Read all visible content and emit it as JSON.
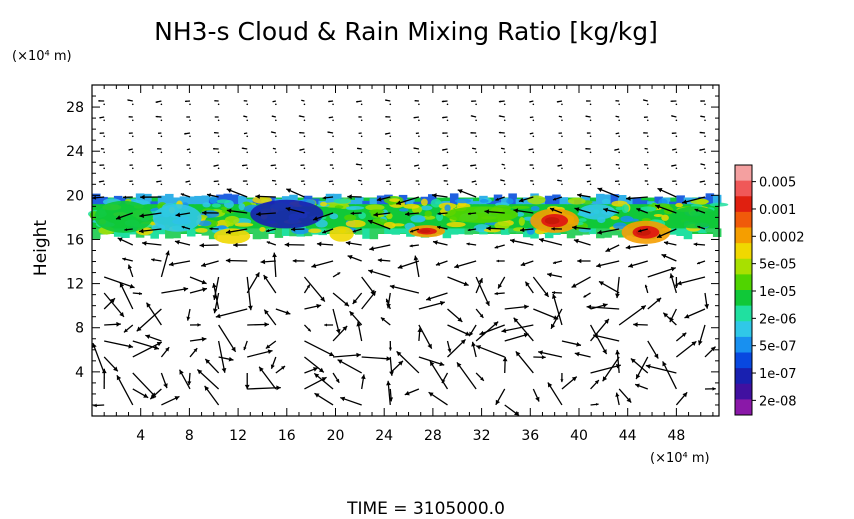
{
  "chart_data": {
    "type": "heatmap",
    "title": "NH3-s Cloud & Rain Mixing Ratio [kg/kg]",
    "ylabel": "Height",
    "y_unit_label": "(×10⁴ m)",
    "x_unit_label": "(×10⁴ m)",
    "xlim": [
      0,
      51.5
    ],
    "ylim": [
      0,
      30
    ],
    "x_ticks": [
      "4",
      "8",
      "12",
      "16",
      "20",
      "24",
      "28",
      "32",
      "36",
      "40",
      "44",
      "48"
    ],
    "y_ticks": [
      "4",
      "8",
      "12",
      "16",
      "20",
      "24",
      "28"
    ],
    "footer": "TIME = 3105000.0",
    "colorbar": {
      "labels": [
        "0.005",
        "0.001",
        "0.0002",
        "5e-05",
        "1e-05",
        "2e-06",
        "5e-07",
        "1e-07",
        "2e-08"
      ],
      "colors": [
        "#f4a0a0",
        "#f05858",
        "#e02010",
        "#f05a0a",
        "#f59e00",
        "#f0d800",
        "#a8e000",
        "#50d400",
        "#10c838",
        "#20e0a0",
        "#30c8e8",
        "#1890f0",
        "#0848e0",
        "#1820b0",
        "#4010a0",
        "#8a18a8"
      ]
    },
    "cloud_layer": {
      "y_bottom": 16.5,
      "y_top": 19.8,
      "background_level": "1e-05",
      "regions": [
        {
          "x": [
            0.2,
            5.0
          ],
          "y": [
            16.6,
            19.5
          ],
          "level": "1e-05"
        },
        {
          "x": [
            5.0,
            9.0
          ],
          "y": [
            16.7,
            19.2
          ],
          "level": "2e-06"
        },
        {
          "x": [
            10.0,
            13.0
          ],
          "y": [
            15.6,
            17.0
          ],
          "level": "0.0002"
        },
        {
          "x": [
            13.0,
            19.0
          ],
          "y": [
            17.0,
            19.6
          ],
          "level": "1e-07"
        },
        {
          "x": [
            19.5,
            21.5
          ],
          "y": [
            15.8,
            17.2
          ],
          "level": "0.0002"
        },
        {
          "x": [
            26.0,
            29.0
          ],
          "y": [
            16.2,
            17.3
          ],
          "level": "0.001"
        },
        {
          "x": [
            29.0,
            35.0
          ],
          "y": [
            17.5,
            19.0
          ],
          "level": "5e-05"
        },
        {
          "x": [
            36.0,
            40.0
          ],
          "y": [
            16.6,
            18.8
          ],
          "level": "0.001"
        },
        {
          "x": [
            40.0,
            43.0
          ],
          "y": [
            17.8,
            19.2
          ],
          "level": "2e-06"
        },
        {
          "x": [
            43.5,
            47.5
          ],
          "y": [
            15.6,
            17.7
          ],
          "level": "0.001"
        },
        {
          "x": [
            47.5,
            51.5
          ],
          "y": [
            17.0,
            19.0
          ],
          "level": "1e-05"
        }
      ]
    },
    "wind_vectors": true
  }
}
